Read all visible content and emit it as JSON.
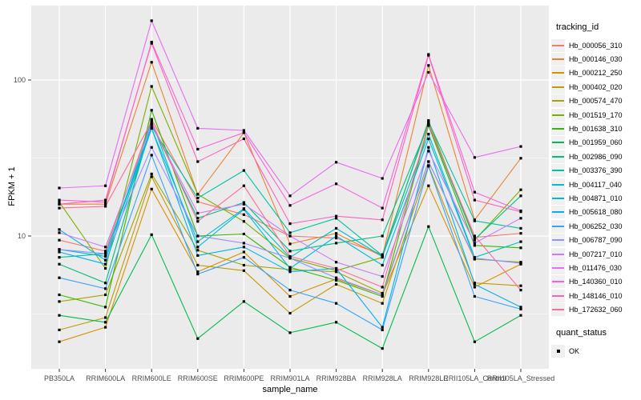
{
  "legend": {
    "tracking_title": "tracking_id",
    "quant_title": "quant_status",
    "quant_ok_label": "OK"
  },
  "chart_data": {
    "type": "line",
    "title": "",
    "xlabel": "sample_name",
    "ylabel": "FPKM + 1",
    "y_scale": "log10",
    "y_ticks": [
      10,
      100
    ],
    "ylim": [
      1.5,
      300
    ],
    "grid": "white major+minor gridlines on gray panel",
    "legend_position": "right",
    "point_marker": "small black square (quant_status = OK) at every data point",
    "categories": [
      "PB350LA",
      "RRIM600LA",
      "RRIM600LE",
      "RRIM600SE",
      "RRIM600PE",
      "RRIM901LA",
      "RRIM928BA",
      "RRIM928LA",
      "RRIM928LE",
      "RRII105LA_Control",
      "RRII105LA_Stressed"
    ],
    "series": [
      {
        "name": "Hb_000056_310",
        "color": "#F8766D",
        "values": [
          9.4,
          8.0,
          56,
          16.6,
          13.7,
          10.0,
          9.7,
          7.6,
          53,
          9.8,
          10.4
        ]
      },
      {
        "name": "Hb_000146_030",
        "color": "#EA8331",
        "values": [
          16.0,
          16.0,
          130,
          18.5,
          46,
          8.9,
          10.4,
          7.4,
          124,
          12.7,
          31.5
        ]
      },
      {
        "name": "Hb_000212_250",
        "color": "#D89000",
        "values": [
          2.1,
          2.6,
          20,
          5.9,
          7.9,
          4.1,
          5.3,
          4.2,
          21,
          4.7,
          6.6
        ]
      },
      {
        "name": "Hb_000402_020",
        "color": "#C09B00",
        "values": [
          2.5,
          3.0,
          24,
          6.5,
          6.0,
          3.2,
          4.9,
          3.7,
          28.3,
          5.0,
          4.8
        ]
      },
      {
        "name": "Hb_000574_470",
        "color": "#A3A500",
        "values": [
          3.8,
          4.2,
          25,
          8.1,
          6.5,
          6.1,
          5.9,
          4.3,
          30,
          7.1,
          6.8
        ]
      },
      {
        "name": "Hb_001519_170",
        "color": "#7CAE00",
        "values": [
          16.5,
          6.2,
          91,
          18.5,
          12.4,
          7.2,
          6.0,
          7.3,
          55,
          9.4,
          19.8
        ]
      },
      {
        "name": "Hb_001638_310",
        "color": "#39B600",
        "values": [
          4.2,
          3.5,
          64,
          10.0,
          10.3,
          6.3,
          5.2,
          4.1,
          51,
          8.7,
          8.4
        ]
      },
      {
        "name": "Hb_001959_060",
        "color": "#00BB4E",
        "values": [
          3.1,
          2.8,
          10.2,
          2.2,
          3.8,
          2.4,
          2.8,
          1.9,
          11.5,
          2.1,
          3.1
        ]
      },
      {
        "name": "Hb_002986_090",
        "color": "#00BF7D",
        "values": [
          6.6,
          5.0,
          52,
          13.0,
          16.4,
          8.0,
          9.0,
          10.0,
          52,
          9.5,
          18.1
        ]
      },
      {
        "name": "Hb_003376_390",
        "color": "#00C1A3",
        "values": [
          7.3,
          7.7,
          50,
          17.5,
          26.3,
          10.5,
          13.0,
          7.5,
          54,
          12.5,
          11.2
        ]
      },
      {
        "name": "Hb_004117_040",
        "color": "#00BFC4",
        "values": [
          8.2,
          7.4,
          49,
          9.2,
          15.0,
          7.3,
          11.2,
          7.4,
          45,
          7.3,
          9.2
        ]
      },
      {
        "name": "Hb_004871_010",
        "color": "#00BAE0",
        "values": [
          11.0,
          7.0,
          55,
          8.5,
          14.8,
          6.2,
          10.0,
          6.5,
          42,
          7.2,
          6.7
        ]
      },
      {
        "name": "Hb_005618_080",
        "color": "#00B0F6",
        "values": [
          7.9,
          6.6,
          49,
          7.5,
          8.5,
          5.9,
          6.2,
          2.6,
          37,
          4.9,
          3.5
        ]
      },
      {
        "name": "Hb_006252_030",
        "color": "#35A2FF",
        "values": [
          5.4,
          4.6,
          33,
          5.7,
          7.3,
          4.5,
          3.7,
          2.5,
          28,
          4.1,
          3.4
        ]
      },
      {
        "name": "Hb_006787_090",
        "color": "#9590FF",
        "values": [
          8.2,
          7.7,
          37,
          10.0,
          9.0,
          7.2,
          5.4,
          4.2,
          30,
          7.2,
          6.7
        ]
      },
      {
        "name": "Hb_007217_010",
        "color": "#C77CFF",
        "values": [
          10.5,
          8.5,
          52,
          14.0,
          16.0,
          10.0,
          6.8,
          5.5,
          35,
          9.0,
          13.0
        ]
      },
      {
        "name": "Hb_011476_030",
        "color": "#E76BF3",
        "values": [
          20.3,
          21.0,
          240,
          49,
          47.5,
          18.1,
          29.7,
          23.4,
          112,
          31.9,
          37.5
        ]
      },
      {
        "name": "Hb_140360_010",
        "color": "#FA62DB",
        "values": [
          17.0,
          16.5,
          175,
          36,
          46,
          15.7,
          21.6,
          15.1,
          146,
          19.1,
          14.5
        ]
      },
      {
        "name": "Hb_148146_010",
        "color": "#FF62BC",
        "values": [
          16.0,
          17.0,
          172,
          30,
          42,
          12.0,
          13.4,
          12.7,
          144,
          17.0,
          14.3
        ]
      },
      {
        "name": "Hb_172632_060",
        "color": "#FF6A98",
        "values": [
          15.1,
          15.5,
          54,
          12.4,
          21.0,
          7.4,
          6.2,
          4.7,
          52,
          10.0,
          4.5
        ]
      }
    ]
  }
}
